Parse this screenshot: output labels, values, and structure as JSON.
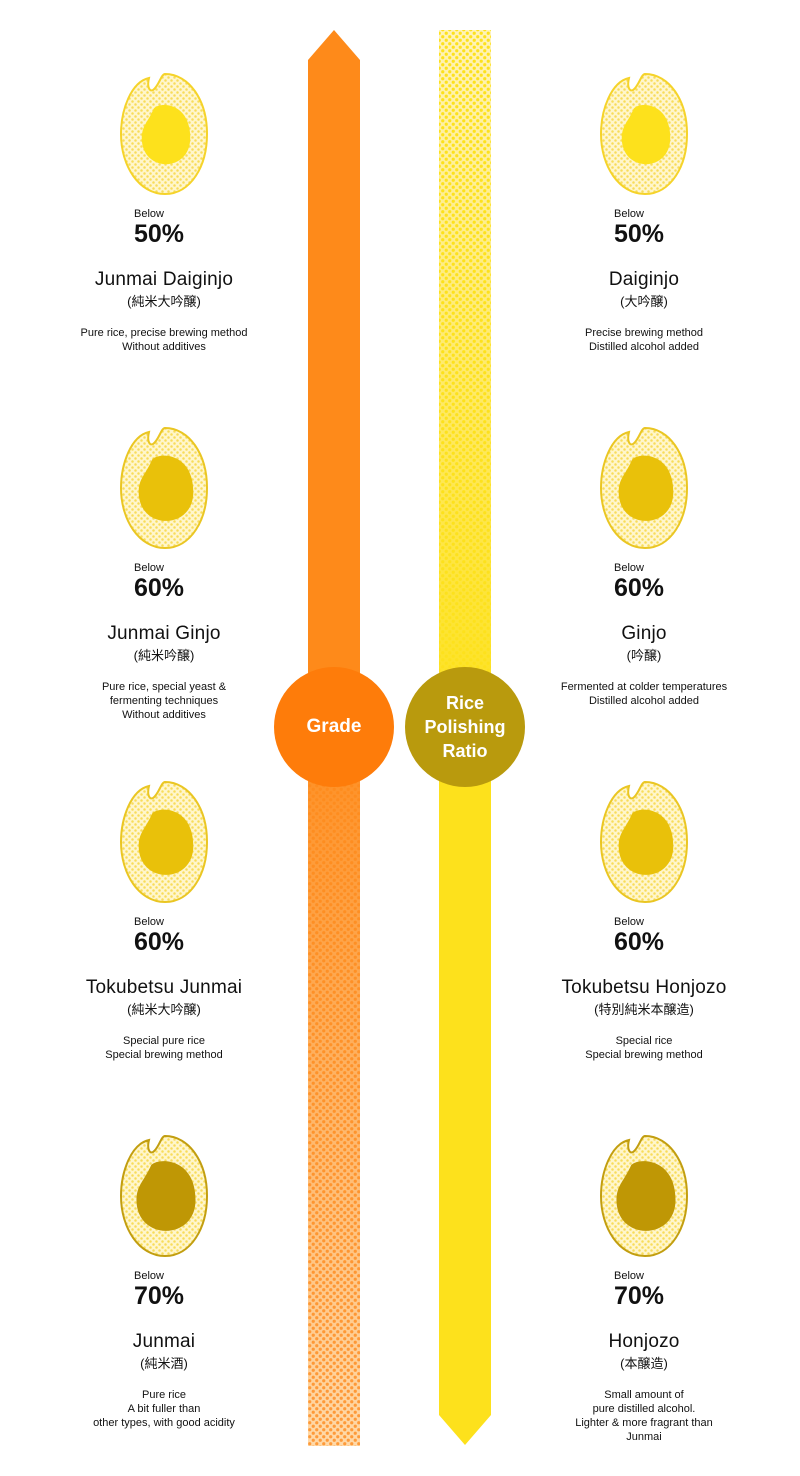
{
  "axis": {
    "grade_label": "Grade",
    "ratio_label": [
      "Rice",
      "Polishing",
      "Ratio"
    ]
  },
  "colors": {
    "orange": "#fe8a1a",
    "orange_circle": "#fe7c0a",
    "yellow": "#fde11c",
    "gold_circle": "#b99a0d",
    "grain_light": "#fde9a0",
    "grain_outline": "#f2cf2d"
  },
  "left": [
    {
      "below": "Below",
      "percent": "50%",
      "name": "Junmai Daiginjo",
      "kanji": "(純米大吟醸)",
      "desc": [
        "Pure rice, precise brewing method",
        "Without additives"
      ],
      "core_color": "#fde11c",
      "outline": "#f5d32a",
      "core": 0.42
    },
    {
      "below": "Below",
      "percent": "60%",
      "name": "Junmai Ginjo",
      "kanji": "(純米吟醸)",
      "desc": [
        "Pure rice, special yeast &",
        "fermenting techniques",
        "Without additives"
      ],
      "core_color": "#e9c10a",
      "outline": "#eac623",
      "core": 0.56
    },
    {
      "below": "Below",
      "percent": "60%",
      "name": "Tokubetsu Junmai",
      "kanji": "(純米大吟醸)",
      "desc": [
        "Special pure rice",
        "Special brewing method"
      ],
      "core_color": "#e9c10a",
      "outline": "#eac623",
      "core": 0.56
    },
    {
      "below": "Below",
      "percent": "70%",
      "name": "Junmai",
      "kanji": "(純米酒)",
      "desc": [
        "Pure rice",
        "A bit fuller than",
        "other types, with good acidity"
      ],
      "core_color": "#bf9705",
      "outline": "#c29e10",
      "core": 0.66
    }
  ],
  "right": [
    {
      "below": "Below",
      "percent": "50%",
      "name": "Daiginjo",
      "kanji": "(大吟醸)",
      "desc": [
        "Precise brewing method",
        "Distilled alcohol added"
      ],
      "core_color": "#fde11c",
      "outline": "#f5d32a",
      "core": 0.42
    },
    {
      "below": "Below",
      "percent": "60%",
      "name": "Ginjo",
      "kanji": "(吟醸)",
      "desc": [
        "Fermented at colder temperatures",
        "Distilled alcohol added"
      ],
      "core_color": "#e9c10a",
      "outline": "#eac623",
      "core": 0.56
    },
    {
      "below": "Below",
      "percent": "60%",
      "name": "Tokubetsu Honjozo",
      "kanji": "(特別純米本醸造)",
      "desc": [
        "Special rice",
        "Special brewing method"
      ],
      "core_color": "#e9c10a",
      "outline": "#eac623",
      "core": 0.56
    },
    {
      "below": "Below",
      "percent": "70%",
      "name": "Honjozo",
      "kanji": "(本醸造)",
      "desc": [
        "Small amount of",
        "pure distilled alcohol.",
        "Lighter & more fragrant than",
        "Junmai"
      ],
      "core_color": "#bf9705",
      "outline": "#c29e10",
      "core": 0.66
    }
  ]
}
